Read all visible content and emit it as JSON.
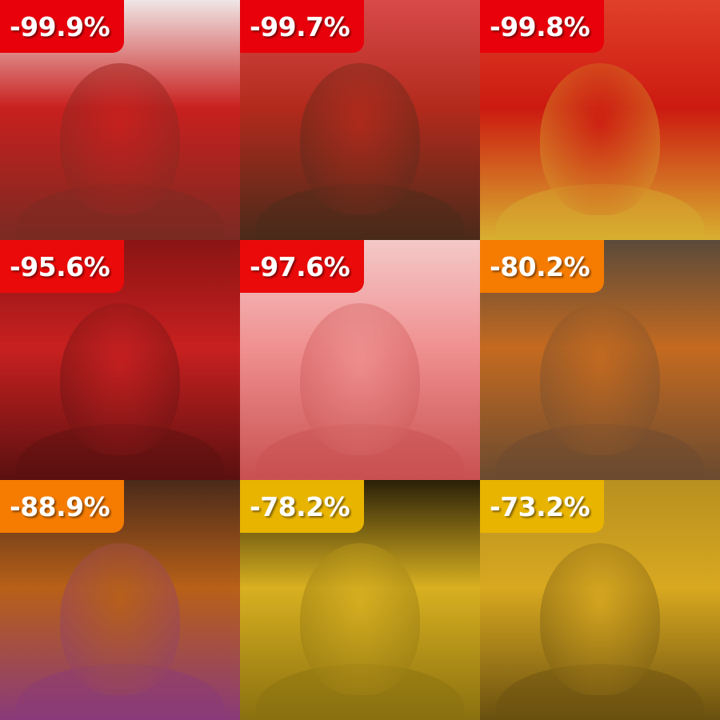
{
  "tiles": [
    {
      "label": "-99.9%",
      "badge_color": "#e8000b",
      "tint_top": "#c8201e",
      "tint_bottom": "#7a2a22",
      "bg": "#f0e6e6"
    },
    {
      "label": "-99.7%",
      "badge_color": "#e8000b",
      "tint_top": "#b22a1c",
      "tint_bottom": "#4a2a1a",
      "bg": "#d84a4a"
    },
    {
      "label": "-99.8%",
      "badge_color": "#e8000b",
      "tint_top": "#cc1a10",
      "tint_bottom": "#d8b030",
      "bg": "#e0402a"
    },
    {
      "label": "-95.6%",
      "badge_color": "#ea0a0a",
      "tint_top": "#c82020",
      "tint_bottom": "#5a1010",
      "bg": "#8a1414"
    },
    {
      "label": "-97.6%",
      "badge_color": "#ea0a0a",
      "tint_top": "#f09090",
      "tint_bottom": "#c85050",
      "bg": "#f4c8c8"
    },
    {
      "label": "-80.2%",
      "badge_color": "#f57c00",
      "tint_top": "#c46a20",
      "tint_bottom": "#6a4a30",
      "bg": "#5a4a3a"
    },
    {
      "label": "-88.9%",
      "badge_color": "#f57c00",
      "tint_top": "#b86018",
      "tint_bottom": "#8a3a7a",
      "bg": "#4a2a1a"
    },
    {
      "label": "-78.2%",
      "badge_color": "#e8b400",
      "tint_top": "#d8b020",
      "tint_bottom": "#8a7010",
      "bg": "#2a2008"
    },
    {
      "label": "-73.2%",
      "badge_color": "#e8b400",
      "tint_top": "#d8a820",
      "tint_bottom": "#6a5010",
      "bg": "#b89020"
    }
  ]
}
